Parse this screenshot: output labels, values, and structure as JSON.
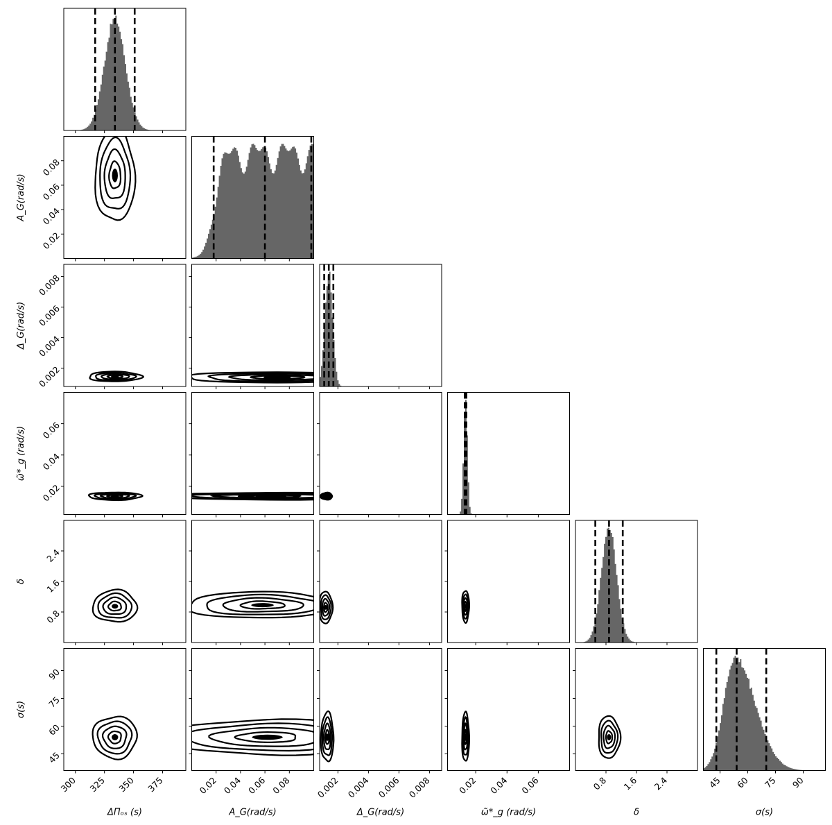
{
  "chart_data": {
    "type": "corner",
    "parameters": [
      {
        "key": "dpi",
        "xlabel": "ΔΠₒₛ (s)",
        "ylabel": "",
        "range": [
          290,
          395
        ],
        "ticks": [
          300,
          325,
          350,
          375
        ],
        "tick_labels": [
          "300",
          "325",
          "350",
          "375"
        ]
      },
      {
        "key": "AG",
        "xlabel": "A_G(rad/s)",
        "ylabel": "A_G(rad/s)",
        "range": [
          0,
          0.1
        ],
        "ticks": [
          0.02,
          0.04,
          0.06,
          0.08
        ],
        "tick_labels": [
          "0.02",
          "0.04",
          "0.06",
          "0.08"
        ]
      },
      {
        "key": "DG",
        "xlabel": "Δ_G(rad/s)",
        "ylabel": "Δ_G(rad/s)",
        "range": [
          0.0008,
          0.0088
        ],
        "ticks": [
          0.002,
          0.004,
          0.006,
          0.008
        ],
        "tick_labels": [
          "0.002",
          "0.004",
          "0.006",
          "0.008"
        ]
      },
      {
        "key": "wg",
        "xlabel": "ω̃*_g (rad/s)",
        "ylabel": "ω̃*_g (rad/s)",
        "range": [
          0.002,
          0.08
        ],
        "ticks": [
          0.02,
          0.04,
          0.06
        ],
        "tick_labels": [
          "0.02",
          "0.04",
          "0.06"
        ]
      },
      {
        "key": "delta",
        "xlabel": "δ",
        "ylabel": "δ",
        "range": [
          0,
          3.2
        ],
        "ticks": [
          0.8,
          1.6,
          2.4
        ],
        "tick_labels": [
          "0.8",
          "1.6",
          "2.4"
        ]
      },
      {
        "key": "sigma",
        "xlabel": "σ(s)",
        "ylabel": "σ(s)",
        "range": [
          36,
          102
        ],
        "ticks": [
          45,
          60,
          75,
          90
        ],
        "tick_labels": [
          "45",
          "60",
          "75",
          "90"
        ]
      }
    ],
    "marginals": [
      {
        "param": "dpi",
        "type": "gaussian",
        "mean": 334,
        "sd": 9,
        "quantiles": [
          317,
          334,
          351
        ]
      },
      {
        "param": "AG",
        "type": "plateau",
        "quantiles": [
          0.018,
          0.06,
          0.098
        ]
      },
      {
        "param": "DG",
        "type": "gaussian",
        "mean": 0.0014,
        "sd": 0.00025,
        "quantiles": [
          0.0011,
          0.0014,
          0.0017
        ]
      },
      {
        "param": "wg",
        "type": "gaussian",
        "mean": 0.0135,
        "sd": 0.0012,
        "quantiles": [
          0.013,
          0.0135,
          0.014
        ]
      },
      {
        "param": "delta",
        "type": "gaussian",
        "mean": 0.88,
        "sd": 0.2,
        "quantiles": [
          0.52,
          0.88,
          1.24
        ]
      },
      {
        "param": "sigma",
        "type": "skewed",
        "mean": 53,
        "sd_left": 6,
        "sd_right": 11,
        "quantiles": [
          43,
          54,
          70
        ]
      }
    ],
    "contours": [
      {
        "x": "dpi",
        "y": "AG",
        "cx": 334,
        "cy": 0.068,
        "sx": 9,
        "sy": 0.02
      },
      {
        "x": "dpi",
        "y": "DG",
        "cx": 334,
        "cy": 0.00145,
        "sx": 12,
        "sy": 0.00017
      },
      {
        "x": "AG",
        "y": "DG",
        "cx": 0.07,
        "cy": 0.0014,
        "sx": 0.04,
        "sy": 0.00018
      },
      {
        "x": "dpi",
        "y": "wg",
        "cx": 334,
        "cy": 0.0137,
        "sx": 12,
        "sy": 0.0013
      },
      {
        "x": "AG",
        "y": "wg",
        "cx": 0.065,
        "cy": 0.0137,
        "sx": 0.045,
        "sy": 0.0012
      },
      {
        "x": "DG",
        "y": "wg",
        "cx": 0.00125,
        "cy": 0.0137,
        "sx": 0.0002,
        "sy": 0.0012
      },
      {
        "x": "dpi",
        "y": "delta",
        "cx": 334,
        "cy": 0.95,
        "sx": 10,
        "sy": 0.22
      },
      {
        "x": "AG",
        "y": "delta",
        "cx": 0.058,
        "cy": 0.98,
        "sx": 0.033,
        "sy": 0.18
      },
      {
        "x": "DG",
        "y": "delta",
        "cx": 0.0012,
        "cy": 0.92,
        "sx": 0.00023,
        "sy": 0.22
      },
      {
        "x": "wg",
        "y": "delta",
        "cx": 0.0135,
        "cy": 0.95,
        "sx": 0.0012,
        "sy": 0.22
      },
      {
        "x": "dpi",
        "y": "sigma",
        "cx": 334,
        "cy": 54,
        "sx": 10,
        "sy": 6
      },
      {
        "x": "AG",
        "y": "sigma",
        "cx": 0.062,
        "cy": 54,
        "sx": 0.045,
        "sy": 5
      },
      {
        "x": "DG",
        "y": "sigma",
        "cx": 0.0013,
        "cy": 54,
        "sx": 0.00022,
        "sy": 7
      },
      {
        "x": "wg",
        "y": "sigma",
        "cx": 0.0135,
        "cy": 54,
        "sx": 0.0012,
        "sy": 7
      },
      {
        "x": "delta",
        "y": "sigma",
        "cx": 0.88,
        "cy": 54,
        "sx": 0.15,
        "sy": 6
      }
    ],
    "colors": {
      "hist_fill": "#666666",
      "contour": "#000000",
      "quantile_line": "#000000"
    }
  }
}
